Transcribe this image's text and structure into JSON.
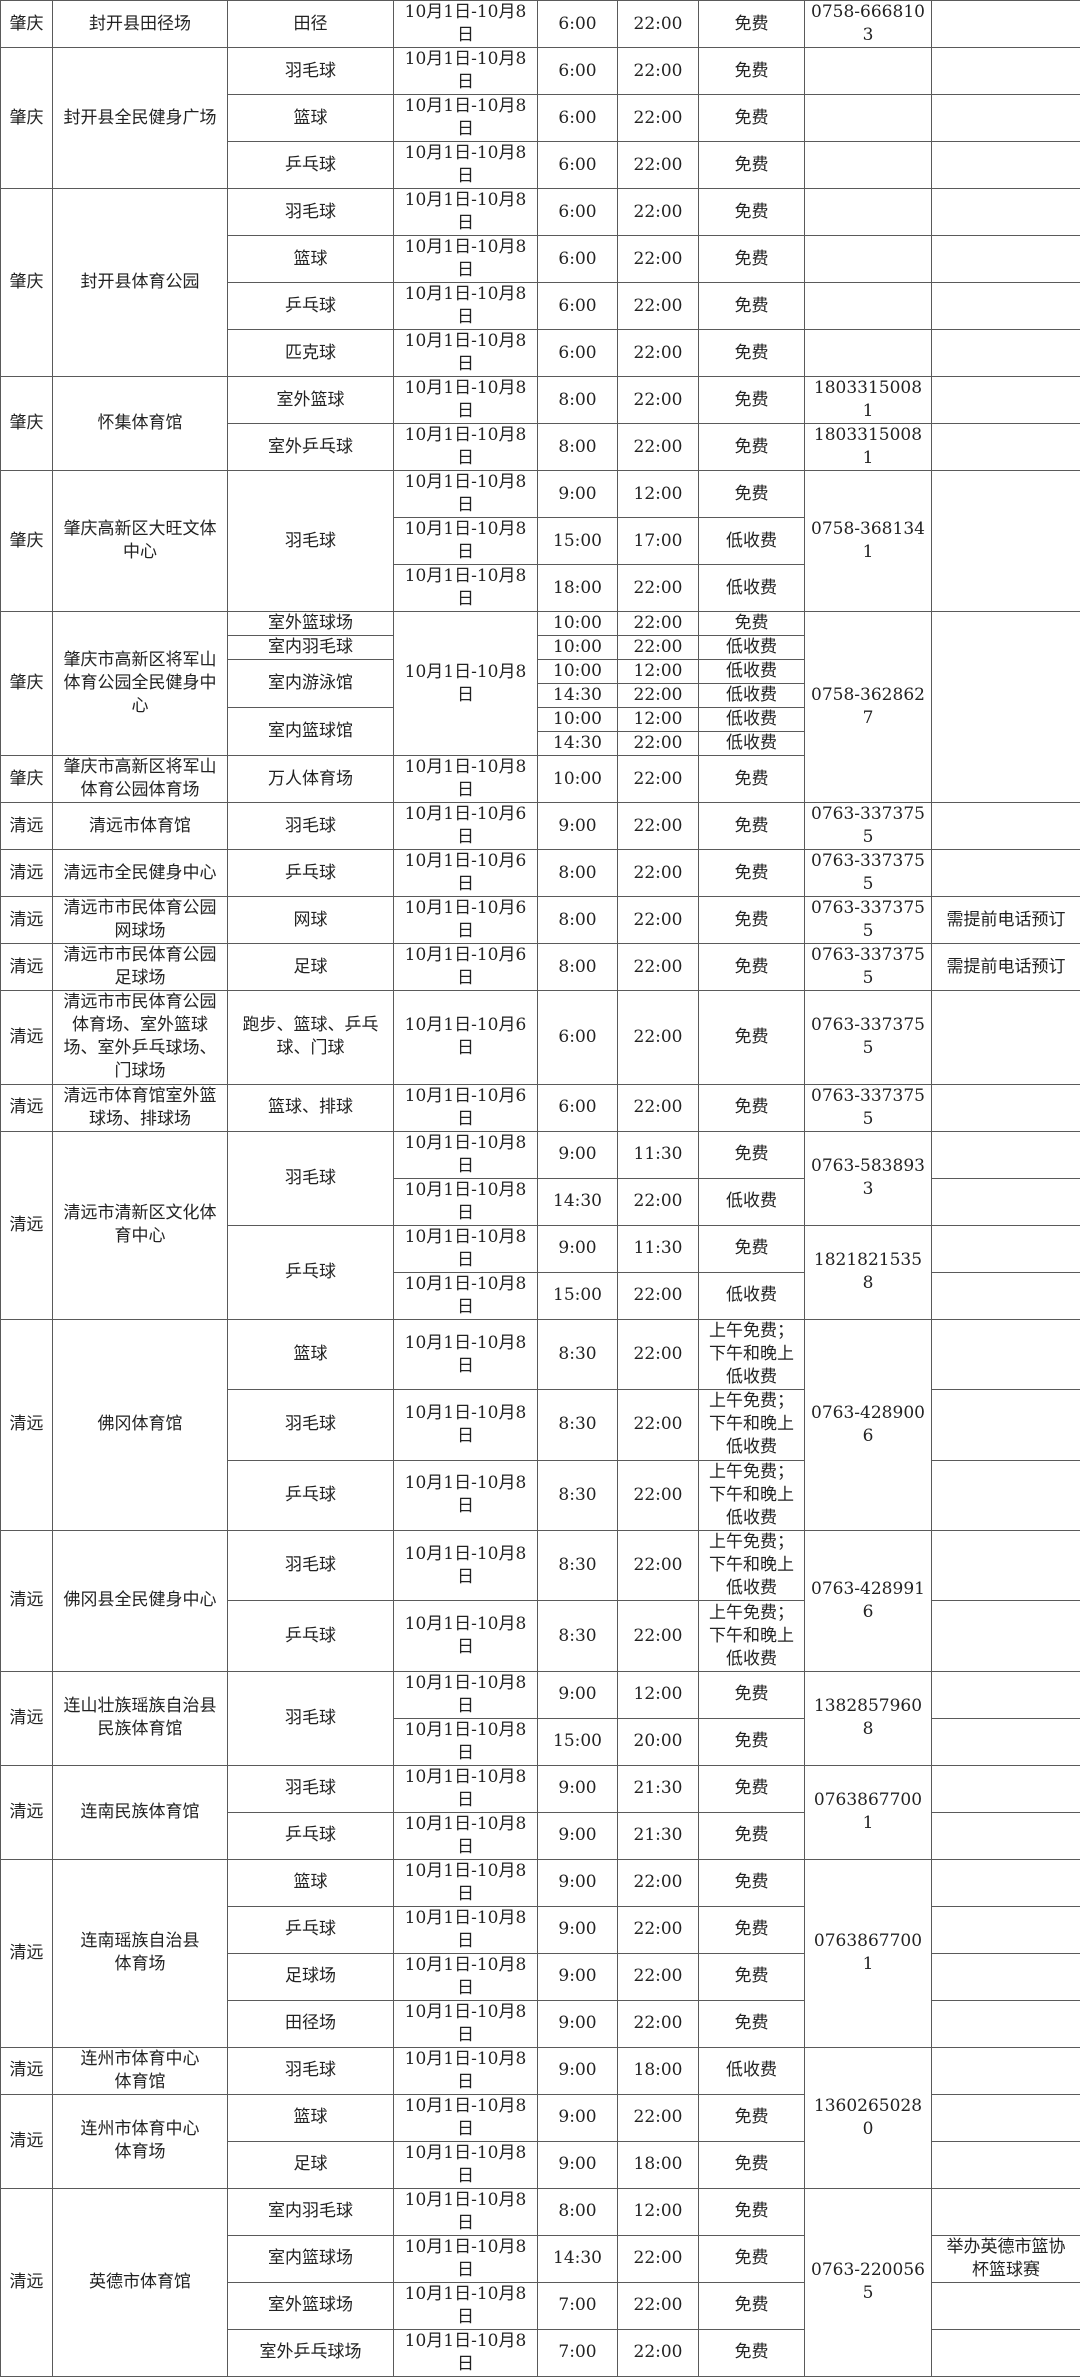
{
  "groups": [
    {
      "rows": [
        {
          "city": "肇庆",
          "venue": "封开县田径场",
          "sport": "田径",
          "date": "10月1日-10月8日",
          "open": "6:00",
          "close": "22:00",
          "fee": "免费",
          "phone": "0758-6668103",
          "note": ""
        }
      ]
    },
    {
      "rows": [
        {
          "city": "肇庆",
          "venue": "封开县全民健身广场",
          "sport": "羽毛球",
          "date": "10月1日-10月8日",
          "open": "6:00",
          "close": "22:00",
          "fee": "免费",
          "phone": "",
          "note": ""
        },
        {
          "sport": "篮球",
          "date": "10月1日-10月8日",
          "open": "6:00",
          "close": "22:00",
          "fee": "免费",
          "phone": "",
          "note": ""
        },
        {
          "sport": "乒乓球",
          "date": "10月1日-10月8日",
          "open": "6:00",
          "close": "22:00",
          "fee": "免费",
          "phone": "",
          "note": ""
        }
      ]
    },
    {
      "rows": [
        {
          "city": "肇庆",
          "venue": "封开县体育公园",
          "sport": "羽毛球",
          "date": "10月1日-10月8日",
          "open": "6:00",
          "close": "22:00",
          "fee": "免费",
          "phone": "",
          "note": ""
        },
        {
          "sport": "篮球",
          "date": "10月1日-10月8日",
          "open": "6:00",
          "close": "22:00",
          "fee": "免费",
          "phone": "",
          "note": ""
        },
        {
          "sport": "乒乓球",
          "date": "10月1日-10月8日",
          "open": "6:00",
          "close": "22:00",
          "fee": "免费",
          "phone": "",
          "note": ""
        },
        {
          "sport": "匹克球",
          "date": "10月1日-10月8日",
          "open": "6:00",
          "close": "22:00",
          "fee": "免费",
          "phone": "",
          "note": ""
        }
      ]
    },
    {
      "rows": [
        {
          "city": "肇庆",
          "venue": "怀集体育馆",
          "sport": "室外篮球",
          "date": "10月1日-10月8日",
          "open": "8:00",
          "close": "22:00",
          "fee": "免费",
          "phone": "18033150081",
          "note": ""
        },
        {
          "sport": "室外乒乓球",
          "date": "10月1日-10月8日",
          "open": "8:00",
          "close": "22:00",
          "fee": "免费",
          "phone": "18033150081",
          "note": ""
        }
      ]
    },
    {
      "rows": [
        {
          "city": "肇庆",
          "venue": "肇庆高新区大旺文体中心",
          "sport": "羽毛球",
          "date": "10月1日-10月8日",
          "open": "9:00",
          "close": "12:00",
          "fee": "免费",
          "phone": "0758-3681341",
          "note": ""
        },
        {
          "date": "10月1日-10月8日",
          "open": "15:00",
          "close": "17:00",
          "fee": "低收费"
        },
        {
          "date": "10月1日-10月8日",
          "open": "18:00",
          "close": "22:00",
          "fee": "低收费"
        }
      ]
    },
    {
      "rows": [
        {
          "city": "肇庆",
          "venue": "肇庆市高新区将军山体育公园全民健身中心",
          "sport": "室外篮球场",
          "date": "10月1日-10月8日",
          "open": "10:00",
          "close": "22:00",
          "fee": "免费",
          "phone": "0758-3628627",
          "note": ""
        },
        {
          "sport": "室内羽毛球",
          "open": "10:00",
          "close": "22:00",
          "fee": "低收费"
        },
        {
          "sport": "室内游泳馆",
          "open": "10:00",
          "close": "12:00",
          "fee": "低收费"
        },
        {
          "open": "14:30",
          "close": "22:00",
          "fee": "低收费"
        },
        {
          "sport": "室内篮球馆",
          "open": "10:00",
          "close": "12:00",
          "fee": "低收费"
        },
        {
          "open": "14:30",
          "close": "22:00",
          "fee": "低收费"
        }
      ]
    },
    {
      "rows": [
        {
          "city": "肇庆",
          "venue": "肇庆市高新区将军山体育公园体育场",
          "sport": "万人体育场",
          "date": "10月1日-10月8日",
          "open": "10:00",
          "close": "22:00",
          "fee": "免费"
        }
      ]
    },
    {
      "rows": [
        {
          "city": "清远",
          "venue": "清远市体育馆",
          "sport": "羽毛球",
          "date": "10月1日-10月6日",
          "open": "9:00",
          "close": "22:00",
          "fee": "免费",
          "phone": "0763-3373755",
          "note": ""
        }
      ]
    },
    {
      "rows": [
        {
          "city": "清远",
          "venue": "清远市全民健身中心",
          "sport": "乒乓球",
          "date": "10月1日-10月6日",
          "open": "8:00",
          "close": "22:00",
          "fee": "免费",
          "phone": "0763-3373755",
          "note": ""
        }
      ]
    },
    {
      "rows": [
        {
          "city": "清远",
          "venue": "清远市市民体育公园\n网球场",
          "sport": "网球",
          "date": "10月1日-10月6日",
          "open": "8:00",
          "close": "22:00",
          "fee": "免费",
          "phone": "0763-3373755",
          "note": "需提前电话预订"
        }
      ]
    },
    {
      "rows": [
        {
          "city": "清远",
          "venue": "清远市市民体育公园\n足球场",
          "sport": "足球",
          "date": "10月1日-10月6日",
          "open": "8:00",
          "close": "22:00",
          "fee": "免费",
          "phone": "0763-3373755",
          "note": "需提前电话预订"
        }
      ]
    },
    {
      "rows": [
        {
          "city": "清远",
          "venue": "清远市市民体育公园体育场、室外篮球场、室外乒乓球场、门球场",
          "sport": "跑步、篮球、乒乓球、门球",
          "date": "10月1日-10月6日",
          "open": "6:00",
          "close": "22:00",
          "fee": "免费",
          "phone": "0763-3373755",
          "note": ""
        }
      ]
    },
    {
      "rows": [
        {
          "city": "清远",
          "venue": "清远市体育馆室外篮球场、排球场",
          "sport": "篮球、排球",
          "date": "10月1日-10月6日",
          "open": "6:00",
          "close": "22:00",
          "fee": "免费",
          "phone": "0763-3373755",
          "note": ""
        }
      ]
    },
    {
      "rows": [
        {
          "city": "清远",
          "venue": "清远市清新区文化体育中心",
          "sport": "羽毛球",
          "date": "10月1日-10月8日",
          "open": "9:00",
          "close": "11:30",
          "fee": "免费",
          "phone": "0763-5838933",
          "note": ""
        },
        {
          "date": "10月1日-10月8日",
          "open": "14:30",
          "close": "22:00",
          "fee": "低收费",
          "note": ""
        },
        {
          "sport": "乒乓球",
          "date": "10月1日-10月8日",
          "open": "9:00",
          "close": "11:30",
          "fee": "免费",
          "phone": "18218215358",
          "note": ""
        },
        {
          "date": "10月1日-10月8日",
          "open": "15:00",
          "close": "22:00",
          "fee": "低收费",
          "note": ""
        }
      ]
    },
    {
      "rows": [
        {
          "city": "清远",
          "venue": "佛冈体育馆",
          "sport": "篮球",
          "date": "10月1日-10月8日",
          "open": "8:30",
          "close": "22:00",
          "fee": "上午免费；下午和晚上低收费",
          "phone": "0763-4289006",
          "note": ""
        },
        {
          "sport": "羽毛球",
          "date": "10月1日-10月8日",
          "open": "8:30",
          "close": "22:00",
          "fee": "上午免费；下午和晚上低收费",
          "note": ""
        },
        {
          "sport": "乒乓球",
          "date": "10月1日-10月8日",
          "open": "8:30",
          "close": "22:00",
          "fee": "上午免费；下午和晚上低收费",
          "note": ""
        }
      ]
    },
    {
      "rows": [
        {
          "city": "清远",
          "venue": "佛冈县全民健身中心",
          "sport": "羽毛球",
          "date": "10月1日-10月8日",
          "open": "8:30",
          "close": "22:00",
          "fee": "上午免费；下午和晚上低收费",
          "phone": "0763-4289916",
          "note": ""
        },
        {
          "sport": "乒乓球",
          "date": "10月1日-10月8日",
          "open": "8:30",
          "close": "22:00",
          "fee": "上午免费；下午和晚上低收费",
          "note": ""
        }
      ]
    },
    {
      "rows": [
        {
          "city": "清远",
          "venue": "连山壮族瑶族自治县民族体育馆",
          "sport": "羽毛球",
          "date": "10月1日-10月8日",
          "open": "9:00",
          "close": "12:00",
          "fee": "免费",
          "phone": "13828579608",
          "note": ""
        },
        {
          "date": "10月1日-10月8日",
          "open": "15:00",
          "close": "20:00",
          "fee": "免费",
          "note": ""
        }
      ]
    },
    {
      "rows": [
        {
          "city": "清远",
          "venue": "连南民族体育馆",
          "sport": "羽毛球",
          "date": "10月1日-10月8日",
          "open": "9:00",
          "close": "21:30",
          "fee": "免费",
          "phone": "07638677001",
          "note": ""
        },
        {
          "sport": "乒乓球",
          "date": "10月1日-10月8日",
          "open": "9:00",
          "close": "21:30",
          "fee": "免费",
          "note": ""
        }
      ]
    },
    {
      "rows": [
        {
          "city": "清远",
          "venue": "连南瑶族自治县\n体育场",
          "sport": "篮球",
          "date": "10月1日-10月8日",
          "open": "9:00",
          "close": "22:00",
          "fee": "免费",
          "phone": "07638677001",
          "note": ""
        },
        {
          "sport": "乒乓球",
          "date": "10月1日-10月8日",
          "open": "9:00",
          "close": "22:00",
          "fee": "免费",
          "note": ""
        },
        {
          "sport": "足球场",
          "date": "10月1日-10月8日",
          "open": "9:00",
          "close": "22:00",
          "fee": "免费",
          "note": ""
        },
        {
          "sport": "田径场",
          "date": "10月1日-10月8日",
          "open": "9:00",
          "close": "22:00",
          "fee": "免费",
          "note": ""
        }
      ]
    },
    {
      "rows": [
        {
          "city": "清远",
          "venue": "连州市体育中心\n体育馆",
          "sport": "羽毛球",
          "date": "10月1日-10月8日",
          "open": "9:00",
          "close": "18:00",
          "fee": "低收费",
          "phone": "13602650280",
          "note": ""
        }
      ]
    },
    {
      "rows": [
        {
          "city": "清远",
          "venue": "连州市体育中心\n体育场",
          "sport": "篮球",
          "date": "10月1日-10月8日",
          "open": "9:00",
          "close": "22:00",
          "fee": "免费",
          "note": ""
        },
        {
          "sport": "足球",
          "date": "10月1日-10月8日",
          "open": "9:00",
          "close": "18:00",
          "fee": "免费",
          "note": ""
        }
      ]
    },
    {
      "rows": [
        {
          "city": "清远",
          "venue": "英德市体育馆",
          "sport": "室内羽毛球",
          "date": "10月1日-10月8日",
          "open": "8:00",
          "close": "12:00",
          "fee": "免费",
          "phone": "0763-2200565",
          "note": ""
        },
        {
          "sport": "室内篮球场",
          "date": "10月1日-10月8日",
          "open": "14:30",
          "close": "22:00",
          "fee": "免费",
          "note": "举办英德市篮协杯篮球赛"
        },
        {
          "sport": "室外篮球场",
          "date": "10月1日-10月8日",
          "open": "7:00",
          "close": "22:00",
          "fee": "免费",
          "note": ""
        },
        {
          "sport": "室外乒乓球场",
          "date": "10月1日-10月8日",
          "open": "7:00",
          "close": "22:00",
          "fee": "免费",
          "note": ""
        }
      ]
    }
  ]
}
